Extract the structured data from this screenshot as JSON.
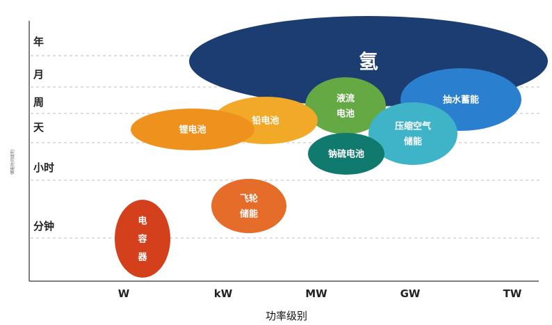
{
  "chart_data": {
    "type": "bubble-range",
    "side_label": "储能时间级别",
    "xlabel": "功率级别",
    "x_categories": [
      "W",
      "kW",
      "MW",
      "GW",
      "TW"
    ],
    "y_categories": [
      "分钟",
      "小时",
      "天",
      "周",
      "月",
      "年"
    ],
    "bubbles": [
      {
        "lines": [
          "氢"
        ],
        "color": "#1b3d72",
        "x_from": "kW",
        "x_to": "TW",
        "y_from": "周",
        "y_to": "年"
      },
      {
        "lines": [
          "抽水蓄能"
        ],
        "color": "#2a7fce",
        "x_from": "GW",
        "x_to": "TW",
        "y_from": "天",
        "y_to": "月"
      },
      {
        "lines": [
          "液流",
          "电池"
        ],
        "color": "#64a943",
        "x_from": "MW",
        "x_to": "MW",
        "y_from": "天",
        "y_to": "周"
      },
      {
        "lines": [
          "压缩空气",
          "储能"
        ],
        "color": "#3fb3c7",
        "x_from": "GW",
        "x_to": "GW",
        "y_from": "小时",
        "y_to": "天"
      },
      {
        "lines": [
          "钠硫电池"
        ],
        "color": "#0f7a6d",
        "x_from": "MW",
        "x_to": "MW",
        "y_from": "小时",
        "y_to": "天"
      },
      {
        "lines": [
          "铅电池"
        ],
        "color": "#f2a928",
        "x_from": "kW",
        "x_to": "MW",
        "y_from": "天",
        "y_to": "天"
      },
      {
        "lines": [
          "锂电池"
        ],
        "color": "#ee921d",
        "x_from": "W",
        "x_to": "kW",
        "y_from": "天",
        "y_to": "天"
      },
      {
        "lines": [
          "飞轮",
          "储能"
        ],
        "color": "#e66c2a",
        "x_from": "kW",
        "x_to": "kW",
        "y_from": "分钟",
        "y_to": "小时"
      },
      {
        "lines": [
          "电",
          "容",
          "器"
        ],
        "color": "#d4401c",
        "x_from": "W",
        "x_to": "W",
        "y_from": "分钟",
        "y_to": "分钟"
      }
    ]
  }
}
